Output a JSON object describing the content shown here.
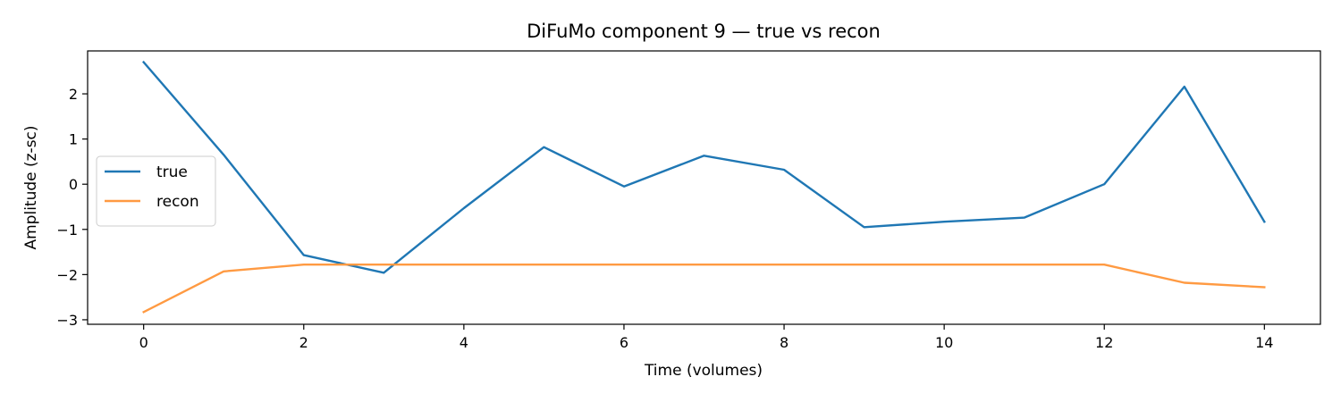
{
  "chart_data": {
    "type": "line",
    "title": "DiFuMo component 9 — true vs recon",
    "xlabel": "Time (volumes)",
    "ylabel": "Amplitude (z-sc)",
    "x": [
      0,
      1,
      2,
      3,
      4,
      5,
      6,
      7,
      8,
      9,
      10,
      11,
      12,
      13,
      14
    ],
    "xlim": [
      -0.7,
      14.7
    ],
    "ylim": [
      -3.1,
      2.95
    ],
    "xticks": [
      0,
      2,
      4,
      6,
      8,
      10,
      12,
      14
    ],
    "yticks": [
      2,
      1,
      0,
      -1,
      -2,
      -3
    ],
    "ytick_labels": [
      "2",
      "1",
      "0",
      "−1",
      "−2",
      "−3"
    ],
    "grid": false,
    "legend_position": "center-left",
    "series": [
      {
        "name": "true",
        "color": "#1f77b4",
        "values": [
          2.7,
          0.65,
          -1.57,
          -1.96,
          -0.53,
          0.82,
          -0.05,
          0.63,
          0.32,
          -0.95,
          -0.83,
          -0.74,
          0.0,
          2.16,
          -0.83
        ]
      },
      {
        "name": "recon",
        "color": "#ff9a42",
        "values": [
          -2.83,
          -1.93,
          -1.78,
          -1.78,
          -1.78,
          -1.78,
          -1.78,
          -1.78,
          -1.78,
          -1.78,
          -1.78,
          -1.78,
          -1.78,
          -2.18,
          -2.28
        ]
      }
    ]
  }
}
